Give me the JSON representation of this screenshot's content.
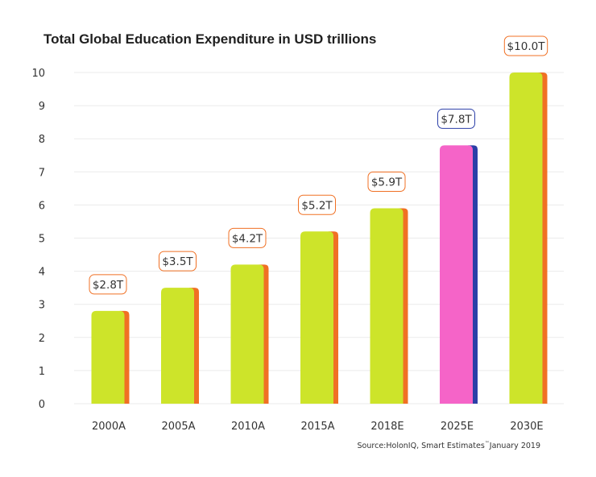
{
  "chart_data": {
    "type": "bar",
    "title": "Total Global Education Expenditure in USD trillions",
    "categories": [
      "2000A",
      "2005A",
      "2010A",
      "2015A",
      "2018E",
      "2025E",
      "2030E"
    ],
    "values": [
      2.8,
      3.5,
      4.2,
      5.2,
      5.9,
      7.8,
      10.0
    ],
    "data_labels": [
      "$2.8T",
      "$3.5T",
      "$4.2T",
      "$5.2T",
      "$5.9T",
      "$7.8T",
      "$10.0T"
    ],
    "xlabel": "",
    "ylabel": "",
    "ylim": [
      0,
      10
    ],
    "yticks": [
      "0",
      "1",
      "2",
      "3",
      "4",
      "5",
      "6",
      "7",
      "8",
      "9",
      "10"
    ],
    "grid": true,
    "source": "Source:HolonIQ, Smart Estimates",
    "source_tm": "™",
    "source_date": "January 2019",
    "colors": {
      "default_face": "#cde42a",
      "default_side": "#f07024",
      "highlight_face": "#f564c8",
      "highlight_side": "#2b3fa7",
      "highlight_category": "2025E",
      "label_border": "#f07024",
      "highlight_label_border": "#2b3fa7"
    }
  }
}
